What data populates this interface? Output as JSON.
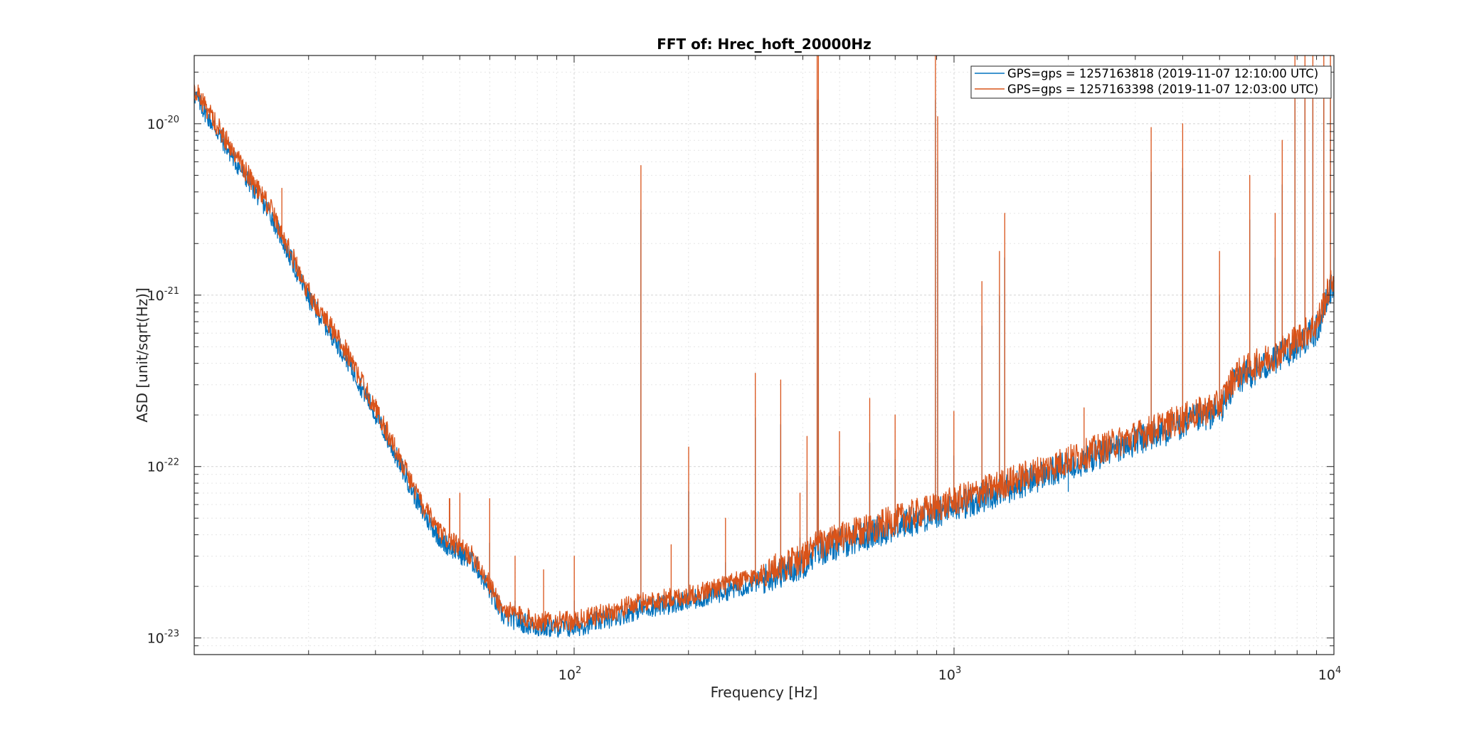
{
  "chart_data": {
    "type": "line",
    "title": "FFT of: Hrec_hoft_20000Hz",
    "xlabel": "Frequency [Hz]",
    "ylabel": "ASD [unit/sqrt(Hz)]",
    "x_scale": "log",
    "y_scale": "log",
    "xlim": [
      10,
      10000
    ],
    "ylim": [
      8e-24,
      2.5e-20
    ],
    "grid": true,
    "legend_position": "top-right",
    "x_ticks": [
      {
        "base": "10",
        "exp": "2"
      },
      {
        "base": "10",
        "exp": "3"
      },
      {
        "base": "10",
        "exp": "4"
      }
    ],
    "y_ticks": [
      {
        "base": "10",
        "exp": "-20"
      },
      {
        "base": "10",
        "exp": "-21"
      },
      {
        "base": "10",
        "exp": "-22"
      },
      {
        "base": "10",
        "exp": "-23"
      }
    ],
    "baseline": {
      "x": [
        10,
        13,
        16,
        20,
        25,
        30,
        35,
        40,
        45,
        55,
        65,
        80,
        100,
        130,
        150,
        200,
        300,
        400,
        430,
        600,
        1000,
        2000,
        3000,
        5000,
        5500,
        7000,
        9000,
        10000
      ],
      "y": [
        1.55e-20,
        6e-21,
        3e-21,
        1e-21,
        4.6e-22,
        2.1e-22,
        1.05e-22,
        5.6e-23,
        3.8e-23,
        2.8e-23,
        1.4e-23,
        1.2e-23,
        1.2e-23,
        1.4e-23,
        1.55e-23,
        1.7e-23,
        2.2e-23,
        2.8e-23,
        3.3e-23,
        4.2e-23,
        6e-23,
        1.05e-22,
        1.45e-22,
        2.2e-22,
        3.3e-22,
        4.3e-22,
        6.5e-22,
        1.25e-21
      ]
    },
    "lines": [
      {
        "x": 17,
        "y": 4.2e-21
      },
      {
        "x": 47,
        "y": 6.5e-23
      },
      {
        "x": 50,
        "y": 7e-23
      },
      {
        "x": 60,
        "y": 6.5e-23
      },
      {
        "x": 70,
        "y": 3e-23
      },
      {
        "x": 83,
        "y": 2.5e-23
      },
      {
        "x": 100,
        "y": 3e-23
      },
      {
        "x": 150,
        "y": 5.7e-21
      },
      {
        "x": 180,
        "y": 3.5e-23
      },
      {
        "x": 200,
        "y": 1.3e-22
      },
      {
        "x": 250,
        "y": 5e-23
      },
      {
        "x": 300,
        "y": 3.5e-22
      },
      {
        "x": 350,
        "y": 3.2e-22
      },
      {
        "x": 393,
        "y": 7e-23
      },
      {
        "x": 410,
        "y": 1.5e-22
      },
      {
        "x": 436,
        "y": 2.5e-20
      },
      {
        "x": 440,
        "y": 2.5e-20
      },
      {
        "x": 500,
        "y": 1.6e-22
      },
      {
        "x": 600,
        "y": 2.5e-22
      },
      {
        "x": 700,
        "y": 2e-22
      },
      {
        "x": 893,
        "y": 2.5e-20
      },
      {
        "x": 905,
        "y": 1.1e-20
      },
      {
        "x": 1000,
        "y": 2.1e-22
      },
      {
        "x": 1185,
        "y": 1.2e-21
      },
      {
        "x": 1318,
        "y": 1.8e-21
      },
      {
        "x": 1360,
        "y": 3e-21
      },
      {
        "x": 2000,
        "y": 1.3e-22
      },
      {
        "x": 2200,
        "y": 2.2e-22
      },
      {
        "x": 3300,
        "y": 9.5e-21
      },
      {
        "x": 4000,
        "y": 1e-20
      },
      {
        "x": 5000,
        "y": 1.8e-21
      },
      {
        "x": 6000,
        "y": 5e-21
      },
      {
        "x": 7000,
        "y": 3e-21
      },
      {
        "x": 7300,
        "y": 8e-21
      },
      {
        "x": 7900,
        "y": 2.5e-20
      },
      {
        "x": 8400,
        "y": 2.5e-20
      },
      {
        "x": 8800,
        "y": 2.5e-20
      },
      {
        "x": 9400,
        "y": 2.5e-20
      },
      {
        "x": 9800,
        "y": 2.5e-20
      }
    ],
    "series": [
      {
        "name": "GPS=gps = 1257163818 (2019-11-07 12:10:00 UTC)",
        "color": "#0072bd",
        "offset": 0.96
      },
      {
        "name": "GPS=gps = 1257163398 (2019-11-07 12:03:00 UTC)",
        "color": "#d95319",
        "offset": 1.04
      }
    ]
  }
}
